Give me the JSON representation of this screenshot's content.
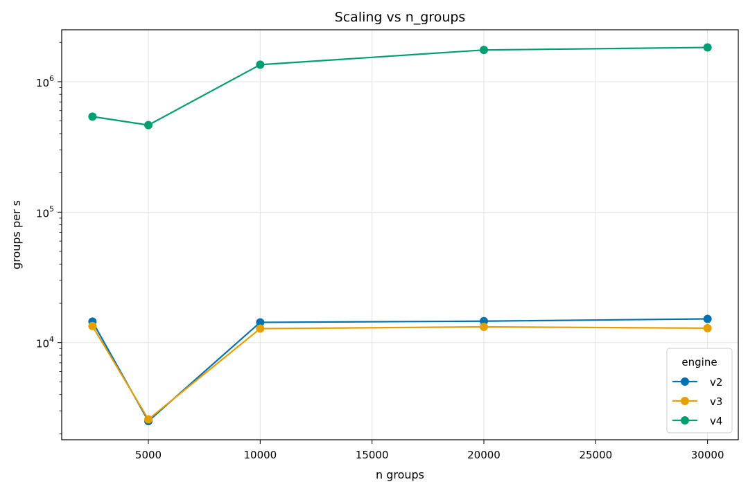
{
  "chart_data": {
    "type": "line",
    "title": "Scaling vs n_groups",
    "xlabel": "n groups",
    "ylabel": "groups per s",
    "xlim": [
      1125,
      31375
    ],
    "ylim": [
      1800,
      2500000
    ],
    "yscale": "log",
    "xticks": [
      5000,
      10000,
      15000,
      20000,
      25000,
      30000
    ],
    "yticks": [
      {
        "value": 10000,
        "base": "10",
        "exp": "4"
      },
      {
        "value": 100000,
        "base": "10",
        "exp": "5"
      },
      {
        "value": 1000000,
        "base": "10",
        "exp": "6"
      }
    ],
    "grid": true,
    "legend": {
      "title": "engine",
      "position": "lower-right"
    },
    "x": [
      2500,
      5000,
      10000,
      20000,
      30000
    ],
    "series": [
      {
        "name": "v2",
        "color": "#0072B2",
        "values": [
          14500,
          2500,
          14300,
          14600,
          15200
        ]
      },
      {
        "name": "v3",
        "color": "#E69F00",
        "values": [
          13400,
          2580,
          12800,
          13200,
          12900
        ]
      },
      {
        "name": "v4",
        "color": "#009E73",
        "values": [
          540000,
          465000,
          1350000,
          1750000,
          1830000
        ]
      }
    ]
  }
}
